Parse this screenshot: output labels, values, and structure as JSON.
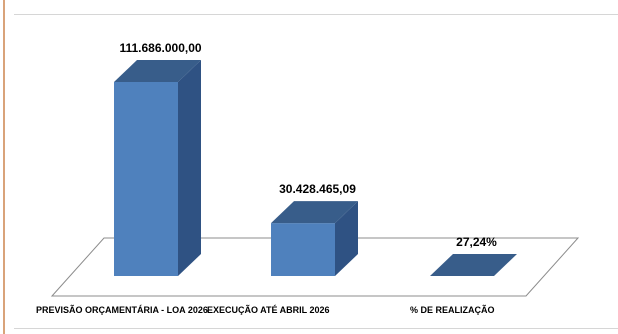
{
  "chart_data": {
    "type": "bar",
    "categories": [
      "PREVISÃO ORÇAMENTÁRIA - LOA 2026",
      "EXECUÇÃO ATÉ ABRIL 2026",
      "% DE REALIZAÇÃO"
    ],
    "values": [
      111686000.0,
      30428465.09,
      0.2724
    ],
    "data_labels": [
      "111.686.000,00",
      "30.428.465,09",
      "27,24%"
    ],
    "ylim": [
      0,
      111686000
    ],
    "grid": false,
    "legend": "none",
    "style": "3d-column",
    "colors": {
      "front": "#4f81bd",
      "top": "#385d8a",
      "side": "#2f5283"
    }
  }
}
